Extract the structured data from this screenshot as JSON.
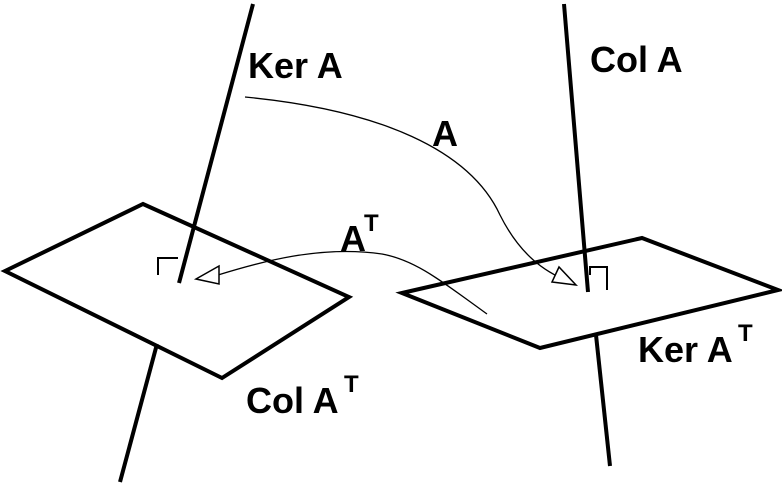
{
  "diagram": {
    "labels": {
      "ker_a": "Ker A",
      "col_a": "Col A",
      "arrow_a": "A",
      "arrow_at_base": "A",
      "arrow_at_sup": "T",
      "ker_at_base": "Ker A",
      "ker_at_sup": "T",
      "col_at_base": "Col A",
      "col_at_sup": "T"
    },
    "colors": {
      "stroke": "#000000",
      "background": "#ffffff"
    }
  }
}
